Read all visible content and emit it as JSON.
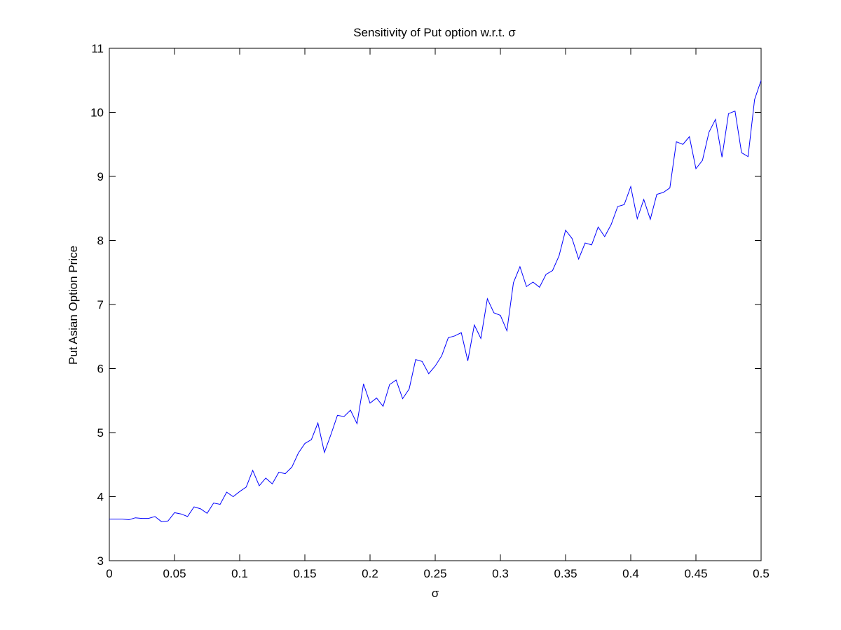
{
  "chart_data": {
    "type": "line",
    "title": "Sensitivity of Put option w.r.t. σ",
    "xlabel": "σ",
    "ylabel": "Put Asian Option Price",
    "xlim": [
      0,
      0.5
    ],
    "ylim": [
      3,
      11
    ],
    "xticks": [
      "0",
      "0.05",
      "0.1",
      "0.15",
      "0.2",
      "0.25",
      "0.3",
      "0.35",
      "0.4",
      "0.45",
      "0.5"
    ],
    "yticks": [
      "3",
      "4",
      "5",
      "6",
      "7",
      "8",
      "9",
      "10",
      "11"
    ],
    "grid": false,
    "series": [
      {
        "color": "#0000ff",
        "x": [
          0,
          0.005,
          0.01,
          0.015,
          0.02,
          0.025,
          0.03,
          0.035,
          0.04,
          0.045,
          0.05,
          0.055,
          0.06,
          0.065,
          0.07,
          0.075,
          0.08,
          0.085,
          0.09,
          0.095,
          0.1,
          0.105,
          0.11,
          0.115,
          0.12,
          0.125,
          0.13,
          0.135,
          0.14,
          0.145,
          0.15,
          0.155,
          0.16,
          0.165,
          0.17,
          0.175,
          0.18,
          0.185,
          0.19,
          0.195,
          0.2,
          0.205,
          0.21,
          0.215,
          0.22,
          0.225,
          0.23,
          0.235,
          0.24,
          0.245,
          0.25,
          0.255,
          0.26,
          0.265,
          0.27,
          0.275,
          0.28,
          0.285,
          0.29,
          0.295,
          0.3,
          0.305,
          0.31,
          0.315,
          0.32,
          0.325,
          0.33,
          0.335,
          0.34,
          0.345,
          0.35,
          0.355,
          0.36,
          0.365,
          0.37,
          0.375,
          0.38,
          0.385,
          0.39,
          0.395,
          0.4,
          0.405,
          0.41,
          0.415,
          0.42,
          0.425,
          0.43,
          0.435,
          0.44,
          0.445,
          0.45,
          0.455,
          0.46,
          0.465,
          0.47,
          0.475,
          0.48,
          0.485,
          0.49,
          0.495,
          0.5
        ],
        "y": [
          3.65,
          3.65,
          3.65,
          3.64,
          3.67,
          3.66,
          3.66,
          3.69,
          3.61,
          3.62,
          3.75,
          3.73,
          3.69,
          3.84,
          3.81,
          3.74,
          3.9,
          3.88,
          4.07,
          4.0,
          4.08,
          4.15,
          4.41,
          4.17,
          4.29,
          4.2,
          4.38,
          4.36,
          4.46,
          4.68,
          4.83,
          4.89,
          5.15,
          4.69,
          4.97,
          5.27,
          5.25,
          5.35,
          5.14,
          5.76,
          5.46,
          5.54,
          5.41,
          5.75,
          5.82,
          5.53,
          5.68,
          6.14,
          6.11,
          5.92,
          6.04,
          6.2,
          6.48,
          6.51,
          6.56,
          6.12,
          6.68,
          6.47,
          7.09,
          6.87,
          6.83,
          6.59,
          7.34,
          7.59,
          7.28,
          7.35,
          7.27,
          7.47,
          7.53,
          7.76,
          8.16,
          8.03,
          7.71,
          7.96,
          7.93,
          8.21,
          8.06,
          8.25,
          8.53,
          8.56,
          8.84,
          8.34,
          8.64,
          8.33,
          8.72,
          8.75,
          8.82,
          9.54,
          9.5,
          9.62,
          9.12,
          9.25,
          9.69,
          9.89,
          9.3,
          9.98,
          10.02,
          9.37,
          9.31,
          10.2,
          10.5
        ]
      }
    ]
  }
}
